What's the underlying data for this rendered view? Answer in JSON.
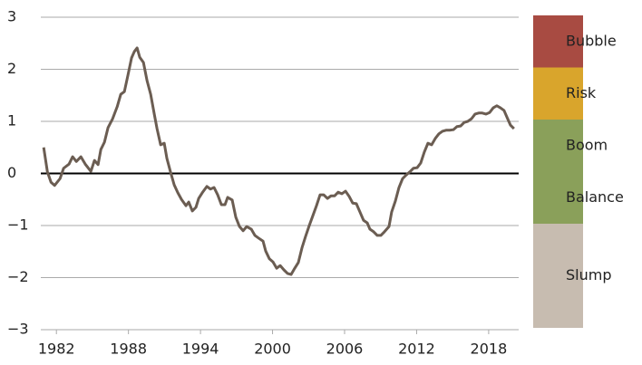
{
  "chart_data": {
    "type": "line",
    "color": "#6b5d52",
    "grid": true,
    "xlim": [
      1980.7,
      2020.5
    ],
    "xticks": [
      1982,
      1988,
      1994,
      2000,
      2006,
      2012,
      2018
    ],
    "ylim": [
      -3,
      3
    ],
    "yticks": [
      {
        "value": -3,
        "label": "−3"
      },
      {
        "value": -2,
        "label": "−2"
      },
      {
        "value": -1,
        "label": "−1"
      },
      0,
      1,
      2,
      3
    ],
    "zones": [
      {
        "label": "Bubble",
        "from": 2,
        "to": 3,
        "color": "#a84b42"
      },
      {
        "label": "Risk",
        "from": 1,
        "to": 2,
        "color": "#d9a52c"
      },
      {
        "label": "Boom",
        "from": 0,
        "to": 1,
        "color": "#8aa05a"
      },
      {
        "label": "Balance",
        "from": -1,
        "to": 0,
        "color": "#8aa05a"
      },
      {
        "label": "Slump",
        "from": -3,
        "to": -1,
        "color": "#c7bcb0"
      }
    ],
    "x": [
      1980.94,
      1981.25,
      1981.55,
      1981.85,
      1982.3,
      1982.6,
      1983.05,
      1983.35,
      1983.66,
      1984.04,
      1984.4,
      1984.87,
      1985.17,
      1985.47,
      1985.7,
      1986.0,
      1986.3,
      1986.68,
      1987.06,
      1987.36,
      1987.66,
      1987.96,
      1988.26,
      1988.49,
      1988.72,
      1988.94,
      1989.25,
      1989.55,
      1989.85,
      1990.15,
      1990.38,
      1990.68,
      1990.98,
      1991.2,
      1991.5,
      1991.81,
      1992.11,
      1992.42,
      1992.79,
      1993.02,
      1993.32,
      1993.62,
      1993.85,
      1994.15,
      1994.53,
      1994.83,
      1995.13,
      1995.43,
      1995.74,
      1996.04,
      1996.26,
      1996.64,
      1996.94,
      1997.25,
      1997.55,
      1997.85,
      1998.23,
      1998.53,
      1998.83,
      1999.21,
      1999.43,
      1999.74,
      2000.04,
      2000.34,
      2000.64,
      2000.94,
      2001.25,
      2001.55,
      2001.85,
      2002.15,
      2002.45,
      2002.75,
      2003.06,
      2003.36,
      2003.66,
      2003.96,
      2004.26,
      2004.57,
      2004.87,
      2005.17,
      2005.47,
      2005.77,
      2006.08,
      2006.38,
      2006.68,
      2006.98,
      2007.28,
      2007.58,
      2007.89,
      2008.11,
      2008.42,
      2008.72,
      2009.02,
      2009.32,
      2009.7,
      2009.92,
      2010.23,
      2010.53,
      2010.83,
      2011.13,
      2011.43,
      2011.74,
      2012.04,
      2012.34,
      2012.64,
      2012.94,
      2013.25,
      2013.55,
      2013.85,
      2014.15,
      2014.45,
      2014.75,
      2015.06,
      2015.36,
      2015.66,
      2015.96,
      2016.26,
      2016.57,
      2016.87,
      2017.17,
      2017.47,
      2017.77,
      2018.08,
      2018.38,
      2018.68,
      2018.98,
      2019.28,
      2019.58,
      2019.81,
      2020.11
    ],
    "values": [
      0.5,
      0.03,
      -0.17,
      -0.23,
      -0.1,
      0.1,
      0.18,
      0.32,
      0.23,
      0.32,
      0.18,
      0.04,
      0.25,
      0.17,
      0.46,
      0.6,
      0.88,
      1.05,
      1.28,
      1.52,
      1.57,
      1.89,
      2.22,
      2.34,
      2.41,
      2.23,
      2.13,
      1.78,
      1.52,
      1.14,
      0.86,
      0.55,
      0.58,
      0.29,
      0.03,
      -0.22,
      -0.37,
      -0.5,
      -0.62,
      -0.55,
      -0.72,
      -0.65,
      -0.48,
      -0.37,
      -0.25,
      -0.3,
      -0.27,
      -0.41,
      -0.6,
      -0.6,
      -0.46,
      -0.51,
      -0.84,
      -1.02,
      -1.1,
      -1.02,
      -1.07,
      -1.19,
      -1.24,
      -1.3,
      -1.49,
      -1.64,
      -1.7,
      -1.82,
      -1.77,
      -1.85,
      -1.92,
      -1.94,
      -1.82,
      -1.71,
      -1.43,
      -1.21,
      -1.0,
      -0.81,
      -0.62,
      -0.41,
      -0.41,
      -0.48,
      -0.43,
      -0.43,
      -0.36,
      -0.39,
      -0.34,
      -0.44,
      -0.57,
      -0.58,
      -0.74,
      -0.9,
      -0.95,
      -1.07,
      -1.12,
      -1.19,
      -1.19,
      -1.12,
      -1.02,
      -0.74,
      -0.53,
      -0.27,
      -0.1,
      -0.03,
      0.03,
      0.1,
      0.11,
      0.2,
      0.41,
      0.58,
      0.55,
      0.67,
      0.76,
      0.81,
      0.83,
      0.83,
      0.84,
      0.9,
      0.91,
      0.98,
      1.0,
      1.05,
      1.14,
      1.16,
      1.16,
      1.14,
      1.17,
      1.26,
      1.3,
      1.26,
      1.21,
      1.05,
      0.93,
      0.86
    ]
  }
}
